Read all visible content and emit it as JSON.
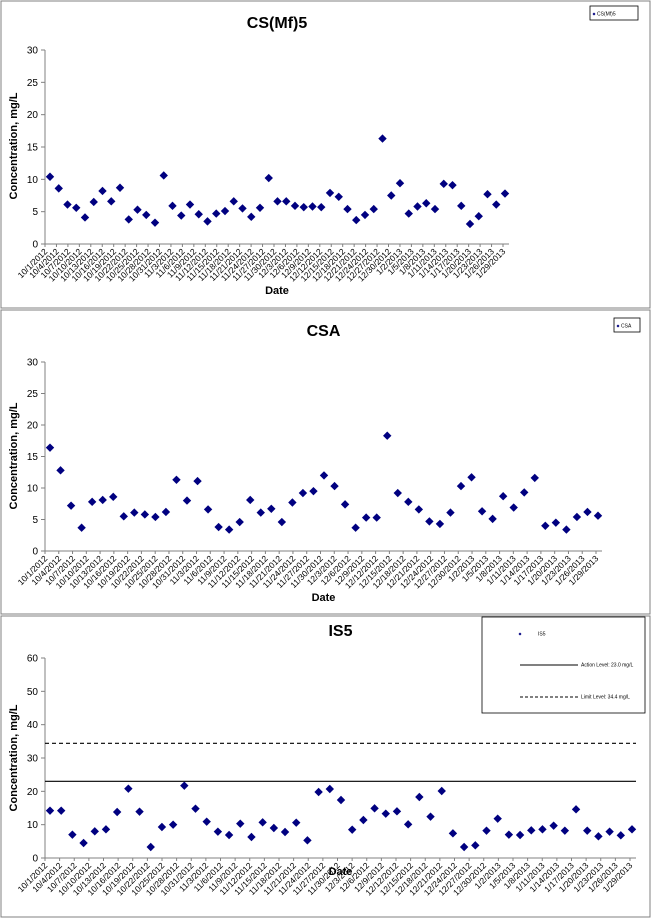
{
  "colors": {
    "marker": "#000080",
    "panel_border": "#808080",
    "axis": "#808080",
    "line": "#000000"
  },
  "chart_data": [
    {
      "type": "scatter",
      "title": "CS(Mf)5",
      "xlabel": "Date",
      "ylabel": "Concentration, mg/L",
      "ylim": [
        0,
        30
      ],
      "yticks": [
        0,
        5,
        10,
        15,
        20,
        25,
        30
      ],
      "x_tick_labels": [
        "10/1/2012",
        "10/4/2012",
        "10/7/2012",
        "10/10/2012",
        "10/13/2012",
        "10/16/2012",
        "10/19/2012",
        "10/22/2012",
        "10/25/2012",
        "10/28/2012",
        "10/31/2012",
        "11/3/2012",
        "11/6/2012",
        "11/9/2012",
        "11/12/2012",
        "11/15/2012",
        "11/18/2012",
        "11/21/2012",
        "11/24/2012",
        "11/27/2012",
        "11/30/2012",
        "12/3/2012",
        "12/6/2012",
        "12/9/2012",
        "12/12/2012",
        "12/15/2012",
        "12/18/2012",
        "12/21/2012",
        "12/24/2012",
        "12/27/2012",
        "12/30/2012",
        "1/2/2013",
        "1/5/2013",
        "1/8/2013",
        "1/11/2013",
        "1/14/2013",
        "1/17/2013",
        "1/20/2013",
        "1/23/2013",
        "1/26/2013",
        "1/29/2013"
      ],
      "grid": false,
      "legend": {
        "position": "top-right",
        "entries": [
          "CS(Mf)5"
        ]
      },
      "series": [
        {
          "values": [
            10.4,
            8.6,
            6.1,
            5.6,
            4.1,
            6.5,
            8.2,
            6.6,
            8.7,
            3.8,
            5.3,
            4.5,
            3.3,
            10.6,
            5.9,
            4.4,
            6.1,
            4.6,
            3.5,
            4.7,
            5.1,
            6.6,
            5.5,
            4.2,
            5.6,
            10.2,
            6.6,
            6.6,
            5.9,
            5.7,
            5.8,
            5.7,
            7.9,
            7.3,
            5.4,
            3.7,
            4.5,
            5.4,
            16.3,
            7.5,
            9.4,
            4.7,
            5.8,
            6.3,
            5.4,
            9.3,
            9.1,
            5.9,
            3.1,
            4.3,
            7.7,
            6.1,
            7.8
          ]
        }
      ]
    },
    {
      "type": "scatter",
      "title": "CSA",
      "xlabel": "Date",
      "ylabel": "Concentration, mg/L",
      "ylim": [
        0,
        30
      ],
      "yticks": [
        0,
        5,
        10,
        15,
        20,
        25,
        30
      ],
      "x_tick_labels": [
        "10/1/2012",
        "10/4/2012",
        "10/7/2012",
        "10/10/2012",
        "10/13/2012",
        "10/16/2012",
        "10/19/2012",
        "10/22/2012",
        "10/25/2012",
        "10/28/2012",
        "10/31/2012",
        "11/3/2012",
        "11/6/2012",
        "11/9/2012",
        "11/12/2012",
        "11/15/2012",
        "11/18/2012",
        "11/21/2012",
        "11/24/2012",
        "11/27/2012",
        "11/30/2012",
        "12/3/2012",
        "12/6/2012",
        "12/9/2012",
        "12/12/2012",
        "12/15/2012",
        "12/18/2012",
        "12/21/2012",
        "12/24/2012",
        "12/27/2012",
        "12/30/2012",
        "1/2/2013",
        "1/5/2013",
        "1/8/2013",
        "1/11/2013",
        "1/14/2013",
        "1/17/2013",
        "1/20/2013",
        "1/23/2013",
        "1/26/2013",
        "1/29/2013"
      ],
      "grid": false,
      "legend": {
        "position": "top-right",
        "entries": [
          "CSA"
        ]
      },
      "series": [
        {
          "values": [
            16.4,
            12.8,
            7.2,
            3.7,
            7.8,
            8.1,
            8.6,
            5.5,
            6.1,
            5.8,
            5.4,
            6.2,
            11.3,
            8.0,
            11.1,
            6.6,
            3.8,
            3.4,
            4.6,
            8.1,
            6.1,
            6.7,
            4.6,
            7.7,
            9.2,
            9.5,
            12.0,
            10.3,
            7.4,
            3.7,
            5.3,
            5.3,
            18.3,
            9.2,
            7.8,
            6.6,
            4.7,
            4.3,
            6.1,
            10.3,
            11.7,
            6.3,
            5.1,
            8.7,
            6.9,
            9.3,
            11.6,
            4.0,
            4.5,
            3.4,
            5.4,
            6.2,
            5.6
          ]
        }
      ]
    },
    {
      "type": "scatter",
      "title": "IS5",
      "xlabel": "Date",
      "ylabel": "Concentration, mg/L",
      "ylim": [
        0,
        60
      ],
      "yticks": [
        0,
        10,
        20,
        30,
        40,
        50,
        60
      ],
      "x_tick_labels": [
        "10/1/2012",
        "10/4/2012",
        "10/7/2012",
        "10/10/2012",
        "10/13/2012",
        "10/16/2012",
        "10/19/2012",
        "10/22/2012",
        "10/25/2012",
        "10/28/2012",
        "10/31/2012",
        "11/3/2012",
        "11/6/2012",
        "11/9/2012",
        "11/12/2012",
        "11/15/2012",
        "11/18/2012",
        "11/21/2012",
        "11/24/2012",
        "11/27/2012",
        "11/30/2012",
        "12/3/2012",
        "12/6/2012",
        "12/9/2012",
        "12/12/2012",
        "12/15/2012",
        "12/18/2012",
        "12/21/2012",
        "12/24/2012",
        "12/27/2012",
        "12/30/2012",
        "1/2/2013",
        "1/5/2013",
        "1/8/2013",
        "1/11/2013",
        "1/14/2013",
        "1/17/2013",
        "1/20/2013",
        "1/23/2013",
        "1/26/2013",
        "1/29/2013"
      ],
      "grid": false,
      "legend": {
        "position": "top-right",
        "entries": [
          "IS5",
          "Action Level: 23.0 mg/L",
          "Limit Level: 34.4 mg/L"
        ]
      },
      "reference_lines": [
        {
          "name": "Action Level: 23.0 mg/L",
          "value": 23.0,
          "style": "solid"
        },
        {
          "name": "Limit Level: 34.4 mg/L",
          "value": 34.4,
          "style": "dashed"
        }
      ],
      "series": [
        {
          "name": "IS5",
          "values": [
            14.2,
            14.2,
            7.0,
            4.5,
            8.0,
            8.6,
            13.8,
            20.8,
            13.9,
            3.3,
            9.3,
            10.0,
            21.7,
            14.8,
            10.9,
            7.9,
            6.9,
            10.3,
            6.3,
            10.7,
            9.0,
            7.8,
            10.6,
            5.3,
            19.8,
            20.7,
            17.4,
            8.5,
            11.4,
            14.9,
            13.3,
            14.0,
            10.1,
            18.3,
            12.4,
            20.1,
            7.4,
            3.3,
            3.8,
            8.2,
            11.8,
            7.0,
            6.9,
            8.3,
            8.6,
            9.7,
            8.2,
            14.6,
            8.2,
            6.5,
            7.9,
            6.8,
            8.6
          ]
        }
      ]
    }
  ]
}
